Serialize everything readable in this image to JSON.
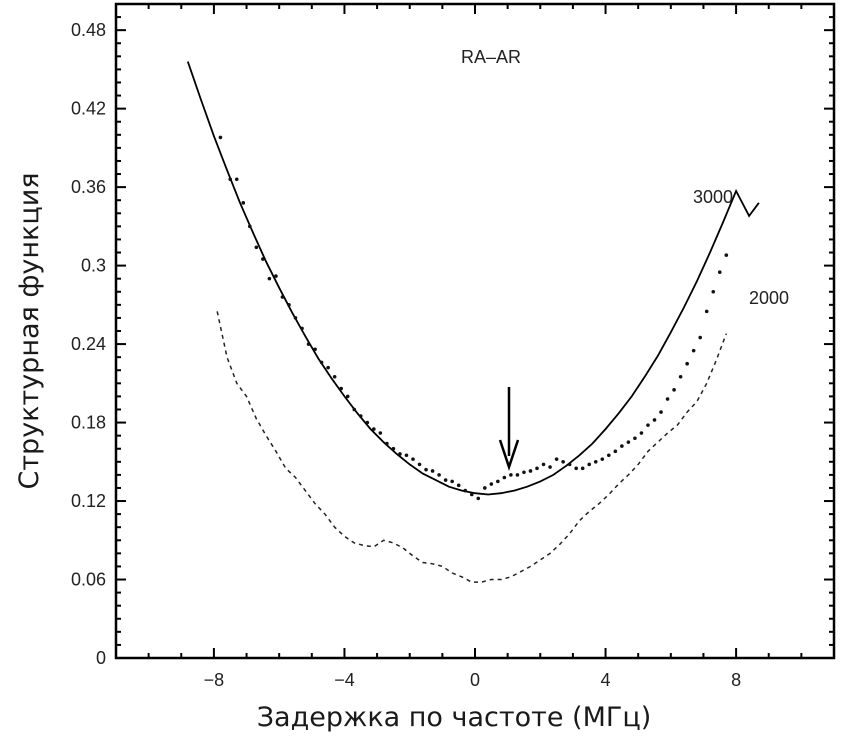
{
  "chart_data": {
    "type": "scatter",
    "title": "RA–AR",
    "xlabel": "Задержка по частоте (МГц)",
    "ylabel": "Структурная функция",
    "xlim": [
      -11,
      11
    ],
    "ylim": [
      0,
      0.5
    ],
    "xticks": [
      -8,
      -4,
      0,
      4,
      8
    ],
    "xtick_labels": [
      "−8",
      "−4",
      "0",
      "4",
      "8"
    ],
    "yticks": [
      0,
      0.06,
      0.12,
      0.18,
      0.24,
      0.3,
      0.36,
      0.42,
      0.48
    ],
    "ytick_labels": [
      "0",
      "0.06",
      "0.12",
      "0.18",
      "0.24",
      "0.3",
      "0.36",
      "0.42",
      "0.48"
    ],
    "grid": false,
    "arrow_at": {
      "x": 0.7,
      "y_from": 0.208,
      "y_to": 0.148
    },
    "series": [
      {
        "name": "3000",
        "style": "points",
        "color": "#111111",
        "x": [
          -7.8,
          -7.5,
          -7.3,
          -7.1,
          -6.9,
          -6.7,
          -6.5,
          -6.3,
          -6.1,
          -5.9,
          -5.7,
          -5.5,
          -5.3,
          -5.1,
          -4.9,
          -4.7,
          -4.5,
          -4.3,
          -4.1,
          -3.9,
          -3.7,
          -3.5,
          -3.3,
          -3.1,
          -2.9,
          -2.7,
          -2.5,
          -2.3,
          -2.1,
          -1.9,
          -1.7,
          -1.5,
          -1.3,
          -1.1,
          -0.9,
          -0.7,
          -0.5,
          -0.3,
          -0.1,
          0.1,
          0.3,
          0.5,
          0.7,
          0.9,
          1.1,
          1.3,
          1.5,
          1.7,
          1.9,
          2.1,
          2.3,
          2.5,
          2.7,
          2.9,
          3.1,
          3.3,
          3.5,
          3.7,
          3.9,
          4.1,
          4.3,
          4.5,
          4.7,
          4.9,
          5.1,
          5.3,
          5.5,
          5.7,
          5.9,
          6.1,
          6.3,
          6.5,
          6.7,
          6.9,
          7.1,
          7.3,
          7.5,
          7.7
        ],
        "y": [
          0.398,
          0.366,
          0.366,
          0.348,
          0.33,
          0.314,
          0.305,
          0.29,
          0.292,
          0.276,
          0.27,
          0.26,
          0.252,
          0.24,
          0.236,
          0.226,
          0.222,
          0.215,
          0.206,
          0.2,
          0.19,
          0.185,
          0.18,
          0.175,
          0.172,
          0.164,
          0.16,
          0.156,
          0.155,
          0.152,
          0.148,
          0.144,
          0.143,
          0.14,
          0.136,
          0.135,
          0.132,
          0.128,
          0.125,
          0.122,
          0.13,
          0.133,
          0.135,
          0.138,
          0.14,
          0.14,
          0.142,
          0.143,
          0.145,
          0.148,
          0.146,
          0.152,
          0.15,
          0.148,
          0.145,
          0.145,
          0.148,
          0.15,
          0.152,
          0.155,
          0.158,
          0.162,
          0.165,
          0.168,
          0.172,
          0.178,
          0.182,
          0.188,
          0.198,
          0.205,
          0.215,
          0.225,
          0.235,
          0.245,
          0.265,
          0.28,
          0.295,
          0.308
        ]
      },
      {
        "name": "2000",
        "style": "dashed",
        "color": "#222222",
        "x": [
          -7.9,
          -7.6,
          -7.3,
          -7.0,
          -6.7,
          -6.4,
          -6.1,
          -5.8,
          -5.5,
          -5.2,
          -4.9,
          -4.6,
          -4.3,
          -4.0,
          -3.7,
          -3.4,
          -3.1,
          -2.8,
          -2.5,
          -2.2,
          -1.9,
          -1.6,
          -1.3,
          -1.0,
          -0.7,
          -0.4,
          -0.1,
          0.2,
          0.5,
          0.8,
          1.1,
          1.4,
          1.7,
          2.0,
          2.3,
          2.6,
          2.9,
          3.2,
          3.5,
          3.8,
          4.1,
          4.4,
          4.7,
          5.0,
          5.3,
          5.6,
          5.9,
          6.2,
          6.5,
          6.8,
          7.1,
          7.4,
          7.7
        ],
        "y": [
          0.265,
          0.23,
          0.21,
          0.2,
          0.183,
          0.17,
          0.158,
          0.145,
          0.138,
          0.128,
          0.118,
          0.11,
          0.1,
          0.093,
          0.088,
          0.086,
          0.085,
          0.09,
          0.088,
          0.084,
          0.078,
          0.073,
          0.072,
          0.07,
          0.065,
          0.062,
          0.058,
          0.058,
          0.06,
          0.06,
          0.062,
          0.066,
          0.07,
          0.075,
          0.08,
          0.087,
          0.095,
          0.105,
          0.112,
          0.118,
          0.125,
          0.133,
          0.14,
          0.148,
          0.158,
          0.165,
          0.172,
          0.178,
          0.188,
          0.196,
          0.21,
          0.228,
          0.248
        ]
      },
      {
        "name": "",
        "style": "line",
        "color": "#000000",
        "x": [
          -8.8,
          -8.4,
          -8.0,
          -7.6,
          -7.2,
          -6.8,
          -6.4,
          -6.0,
          -5.6,
          -5.2,
          -4.8,
          -4.4,
          -4.0,
          -3.6,
          -3.2,
          -2.8,
          -2.4,
          -2.0,
          -1.6,
          -1.2,
          -0.8,
          -0.4,
          0.0,
          0.4,
          0.8,
          1.2,
          1.6,
          2.0,
          2.4,
          2.8,
          3.2,
          3.6,
          4.0,
          4.4,
          4.8,
          5.2,
          5.6,
          6.0,
          6.4,
          6.8,
          7.2,
          7.6,
          8.0,
          8.4,
          8.7
        ],
        "y": [
          0.456,
          0.427,
          0.399,
          0.373,
          0.348,
          0.325,
          0.303,
          0.283,
          0.264,
          0.246,
          0.229,
          0.214,
          0.2,
          0.187,
          0.175,
          0.165,
          0.156,
          0.148,
          0.141,
          0.136,
          0.131,
          0.128,
          0.126,
          0.125,
          0.126,
          0.128,
          0.131,
          0.135,
          0.14,
          0.147,
          0.155,
          0.164,
          0.175,
          0.187,
          0.2,
          0.215,
          0.231,
          0.249,
          0.268,
          0.288,
          0.31,
          0.333,
          0.357,
          0.338,
          0.348
        ]
      }
    ],
    "annotations": [
      {
        "text": "3000",
        "x": 7.2,
        "y": 0.355
      },
      {
        "text": "2000",
        "x": 8.6,
        "y": 0.28
      }
    ]
  }
}
